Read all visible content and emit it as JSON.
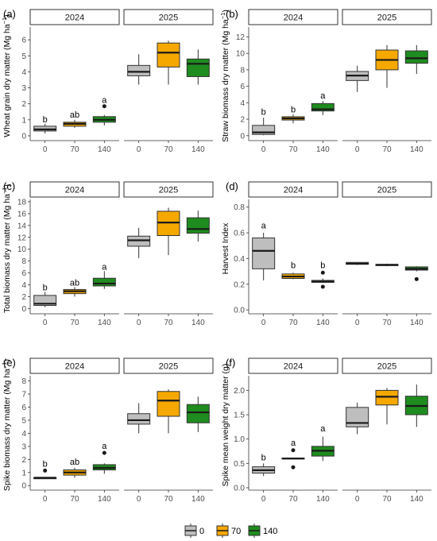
{
  "colors": {
    "0": "#bebebe",
    "70": "#f5a800",
    "140": "#1e8c1e"
  },
  "legend": {
    "items": [
      "0",
      "70",
      "140"
    ]
  },
  "chart_data": [
    {
      "type": "boxplot",
      "panel_label": "(a)",
      "ylabel": "Wheat grain dry matter (Mg ha",
      "ylabel_sup": "−1",
      "ylabel_end": ")",
      "ylim": [
        -0.3,
        6.8
      ],
      "yticks": [
        0,
        1,
        2,
        3,
        4,
        5,
        6
      ],
      "facets": [
        "2024",
        "2025"
      ],
      "categories": [
        "0",
        "70",
        "140"
      ],
      "boxes": [
        {
          "facet": "2024",
          "group": "0",
          "min": 0.15,
          "q1": 0.3,
          "median": 0.4,
          "q3": 0.6,
          "max": 0.75,
          "outliers": []
        },
        {
          "facet": "2024",
          "group": "70",
          "min": 0.5,
          "q1": 0.6,
          "median": 0.75,
          "q3": 0.85,
          "max": 1.0,
          "outliers": []
        },
        {
          "facet": "2024",
          "group": "140",
          "min": 0.65,
          "q1": 0.85,
          "median": 1.0,
          "q3": 1.2,
          "max": 1.3,
          "outliers": [
            1.85
          ]
        },
        {
          "facet": "2025",
          "group": "0",
          "min": 3.2,
          "q1": 3.75,
          "median": 4.0,
          "q3": 4.4,
          "max": 5.1,
          "outliers": []
        },
        {
          "facet": "2025",
          "group": "70",
          "min": 3.2,
          "q1": 4.3,
          "median": 5.2,
          "q3": 5.8,
          "max": 5.95,
          "outliers": []
        },
        {
          "facet": "2025",
          "group": "140",
          "min": 3.2,
          "q1": 3.7,
          "median": 4.5,
          "q3": 4.8,
          "max": 5.4,
          "outliers": []
        }
      ],
      "annotations": [
        {
          "facet": "2024",
          "group": "0",
          "y": 1.05,
          "text": "b"
        },
        {
          "facet": "2024",
          "group": "70",
          "y": 1.35,
          "text": "ab"
        },
        {
          "facet": "2024",
          "group": "140",
          "y": 2.25,
          "text": "a"
        }
      ]
    },
    {
      "type": "boxplot",
      "panel_label": "(b)",
      "ylabel": "Straw biomass dry matter (Mg ha",
      "ylabel_sup": "−1",
      "ylabel_end": ")",
      "ylim": [
        -0.6,
        13.2
      ],
      "yticks": [
        0,
        2,
        4,
        6,
        8,
        10,
        12
      ],
      "facets": [
        "2024",
        "2025"
      ],
      "categories": [
        "0",
        "70",
        "140"
      ],
      "boxes": [
        {
          "facet": "2024",
          "group": "0",
          "min": 0.05,
          "q1": 0.15,
          "median": 0.4,
          "q3": 1.25,
          "max": 2.2,
          "outliers": []
        },
        {
          "facet": "2024",
          "group": "70",
          "min": 1.5,
          "q1": 1.9,
          "median": 2.1,
          "q3": 2.3,
          "max": 2.6,
          "outliers": []
        },
        {
          "facet": "2024",
          "group": "140",
          "min": 2.5,
          "q1": 3.0,
          "median": 3.2,
          "q3": 3.9,
          "max": 4.2,
          "outliers": []
        },
        {
          "facet": "2025",
          "group": "0",
          "min": 5.3,
          "q1": 6.7,
          "median": 7.3,
          "q3": 7.8,
          "max": 8.5,
          "outliers": []
        },
        {
          "facet": "2025",
          "group": "70",
          "min": 5.8,
          "q1": 8.0,
          "median": 9.2,
          "q3": 10.4,
          "max": 11.0,
          "outliers": []
        },
        {
          "facet": "2025",
          "group": "140",
          "min": 7.5,
          "q1": 8.8,
          "median": 9.4,
          "q3": 10.3,
          "max": 11.0,
          "outliers": []
        }
      ],
      "annotations": [
        {
          "facet": "2024",
          "group": "0",
          "y": 2.9,
          "text": "b"
        },
        {
          "facet": "2024",
          "group": "70",
          "y": 3.2,
          "text": "b"
        },
        {
          "facet": "2024",
          "group": "140",
          "y": 4.9,
          "text": "a"
        }
      ]
    },
    {
      "type": "boxplot",
      "panel_label": "(c)",
      "ylabel": "Total biomass dry matter (Mg ha",
      "ylabel_sup": "−1",
      "ylabel_end": ")",
      "ylim": [
        -0.9,
        18.4
      ],
      "yticks": [
        0,
        2,
        4,
        6,
        8,
        10,
        12,
        14,
        16,
        18
      ],
      "facets": [
        "2024",
        "2025"
      ],
      "categories": [
        "0",
        "70",
        "140"
      ],
      "boxes": [
        {
          "facet": "2024",
          "group": "0",
          "min": 0.2,
          "q1": 0.5,
          "median": 0.8,
          "q3": 2.2,
          "max": 2.8,
          "outliers": []
        },
        {
          "facet": "2024",
          "group": "70",
          "min": 2.0,
          "q1": 2.5,
          "median": 2.9,
          "q3": 3.2,
          "max": 3.6,
          "outliers": []
        },
        {
          "facet": "2024",
          "group": "140",
          "min": 3.3,
          "q1": 3.8,
          "median": 4.2,
          "q3": 5.1,
          "max": 6.3,
          "outliers": []
        },
        {
          "facet": "2025",
          "group": "0",
          "min": 8.5,
          "q1": 10.5,
          "median": 11.5,
          "q3": 12.2,
          "max": 13.6,
          "outliers": []
        },
        {
          "facet": "2025",
          "group": "70",
          "min": 9.0,
          "q1": 12.3,
          "median": 14.5,
          "q3": 16.4,
          "max": 17.0,
          "outliers": []
        },
        {
          "facet": "2025",
          "group": "140",
          "min": 11.3,
          "q1": 12.7,
          "median": 13.4,
          "q3": 15.3,
          "max": 16.5,
          "outliers": []
        }
      ],
      "annotations": [
        {
          "facet": "2024",
          "group": "0",
          "y": 3.6,
          "text": "b"
        },
        {
          "facet": "2024",
          "group": "70",
          "y": 4.4,
          "text": "ab"
        },
        {
          "facet": "2024",
          "group": "140",
          "y": 7.1,
          "text": "a"
        }
      ]
    },
    {
      "type": "boxplot",
      "panel_label": "(d)",
      "ylabel": "Harvest Index",
      "ylabel_sup": "",
      "ylabel_end": "",
      "ylim": [
        -0.03,
        0.86
      ],
      "yticks": [
        0.0,
        0.2,
        0.4,
        0.6,
        0.8
      ],
      "ytick_labels": [
        "0.0",
        "0.2",
        "0.4",
        "0.6",
        "0.8"
      ],
      "facets": [
        "2024",
        "2025"
      ],
      "categories": [
        "0",
        "70",
        "140"
      ],
      "boxes": [
        {
          "facet": "2024",
          "group": "0",
          "min": 0.23,
          "q1": 0.32,
          "median": 0.46,
          "q3": 0.56,
          "max": 0.6,
          "outliers": []
        },
        {
          "facet": "2024",
          "group": "70",
          "min": 0.24,
          "q1": 0.245,
          "median": 0.26,
          "q3": 0.28,
          "max": 0.29,
          "outliers": []
        },
        {
          "facet": "2024",
          "group": "140",
          "min": 0.21,
          "q1": 0.215,
          "median": 0.22,
          "q3": 0.23,
          "max": 0.245,
          "outliers": [
            0.18,
            0.29
          ]
        },
        {
          "facet": "2025",
          "group": "0",
          "min": 0.35,
          "q1": 0.355,
          "median": 0.36,
          "q3": 0.37,
          "max": 0.37,
          "outliers": []
        },
        {
          "facet": "2025",
          "group": "70",
          "min": 0.34,
          "q1": 0.345,
          "median": 0.35,
          "q3": 0.355,
          "max": 0.36,
          "outliers": []
        },
        {
          "facet": "2025",
          "group": "140",
          "min": 0.3,
          "q1": 0.31,
          "median": 0.32,
          "q3": 0.335,
          "max": 0.34,
          "outliers": [
            0.24
          ]
        }
      ],
      "annotations": [
        {
          "facet": "2024",
          "group": "0",
          "y": 0.66,
          "text": "a"
        },
        {
          "facet": "2024",
          "group": "70",
          "y": 0.35,
          "text": "b"
        },
        {
          "facet": "2024",
          "group": "140",
          "y": 0.35,
          "text": "b"
        }
      ]
    },
    {
      "type": "boxplot",
      "panel_label": "(e)",
      "ylabel": "Spike biomass dry matter (Mg ha",
      "ylabel_sup": "−1",
      "ylabel_end": ")",
      "ylim": [
        -0.35,
        8.4
      ],
      "yticks": [
        0,
        1,
        2,
        3,
        4,
        5,
        6,
        7,
        8
      ],
      "facets": [
        "2024",
        "2025"
      ],
      "categories": [
        "0",
        "70",
        "140"
      ],
      "boxes": [
        {
          "facet": "2024",
          "group": "0",
          "min": 0.5,
          "q1": 0.52,
          "median": 0.6,
          "q3": 0.62,
          "max": 0.65,
          "outliers": [
            1.15
          ]
        },
        {
          "facet": "2024",
          "group": "70",
          "min": 0.6,
          "q1": 0.8,
          "median": 1.0,
          "q3": 1.2,
          "max": 1.35,
          "outliers": []
        },
        {
          "facet": "2024",
          "group": "140",
          "min": 0.9,
          "q1": 1.2,
          "median": 1.35,
          "q3": 1.6,
          "max": 1.7,
          "outliers": [
            2.5
          ]
        },
        {
          "facet": "2025",
          "group": "0",
          "min": 4.0,
          "q1": 4.7,
          "median": 5.0,
          "q3": 5.5,
          "max": 6.3,
          "outliers": []
        },
        {
          "facet": "2025",
          "group": "70",
          "min": 4.0,
          "q1": 5.3,
          "median": 6.5,
          "q3": 7.2,
          "max": 7.35,
          "outliers": []
        },
        {
          "facet": "2025",
          "group": "140",
          "min": 4.1,
          "q1": 4.8,
          "median": 5.6,
          "q3": 6.2,
          "max": 6.8,
          "outliers": []
        }
      ],
      "annotations": [
        {
          "facet": "2024",
          "group": "0",
          "y": 1.7,
          "text": "b"
        },
        {
          "facet": "2024",
          "group": "70",
          "y": 1.85,
          "text": "ab"
        },
        {
          "facet": "2024",
          "group": "140",
          "y": 3.05,
          "text": "a"
        }
      ]
    },
    {
      "type": "boxplot",
      "panel_label": "(f)",
      "ylabel": "Spike mean weight dry matter (g)",
      "ylabel_sup": "",
      "ylabel_end": "",
      "ylim": [
        -0.05,
        2.3
      ],
      "yticks": [
        0.0,
        0.5,
        1.0,
        1.5,
        2.0
      ],
      "ytick_labels": [
        "0.0",
        "0.5",
        "1.0",
        "1.5",
        "2.0"
      ],
      "facets": [
        "2024",
        "2025"
      ],
      "categories": [
        "0",
        "70",
        "140"
      ],
      "boxes": [
        {
          "facet": "2024",
          "group": "0",
          "min": 0.24,
          "q1": 0.3,
          "median": 0.36,
          "q3": 0.43,
          "max": 0.5,
          "outliers": []
        },
        {
          "facet": "2024",
          "group": "70",
          "min": 0.58,
          "q1": 0.59,
          "median": 0.6,
          "q3": 0.61,
          "max": 0.62,
          "outliers": [
            0.42,
            0.77
          ]
        },
        {
          "facet": "2024",
          "group": "140",
          "min": 0.55,
          "q1": 0.65,
          "median": 0.76,
          "q3": 0.85,
          "max": 1.05,
          "outliers": []
        },
        {
          "facet": "2025",
          "group": "0",
          "min": 1.1,
          "q1": 1.25,
          "median": 1.33,
          "q3": 1.65,
          "max": 1.75,
          "outliers": []
        },
        {
          "facet": "2025",
          "group": "70",
          "min": 1.3,
          "q1": 1.7,
          "median": 1.87,
          "q3": 2.0,
          "max": 2.05,
          "outliers": []
        },
        {
          "facet": "2025",
          "group": "140",
          "min": 1.25,
          "q1": 1.5,
          "median": 1.68,
          "q3": 1.88,
          "max": 2.12,
          "outliers": []
        }
      ],
      "annotations": [
        {
          "facet": "2024",
          "group": "0",
          "y": 0.63,
          "text": "b"
        },
        {
          "facet": "2024",
          "group": "70",
          "y": 0.93,
          "text": "a"
        },
        {
          "facet": "2024",
          "group": "140",
          "y": 1.22,
          "text": "a"
        }
      ]
    }
  ]
}
